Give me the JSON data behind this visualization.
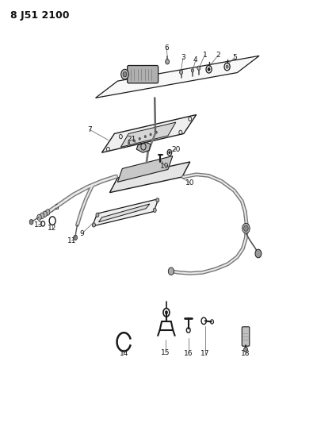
{
  "title": "8 J51 2100",
  "bg_color": "#ffffff",
  "line_color": "#1a1a1a",
  "text_color": "#111111",
  "fig_width": 4.0,
  "fig_height": 5.33,
  "dpi": 100
}
